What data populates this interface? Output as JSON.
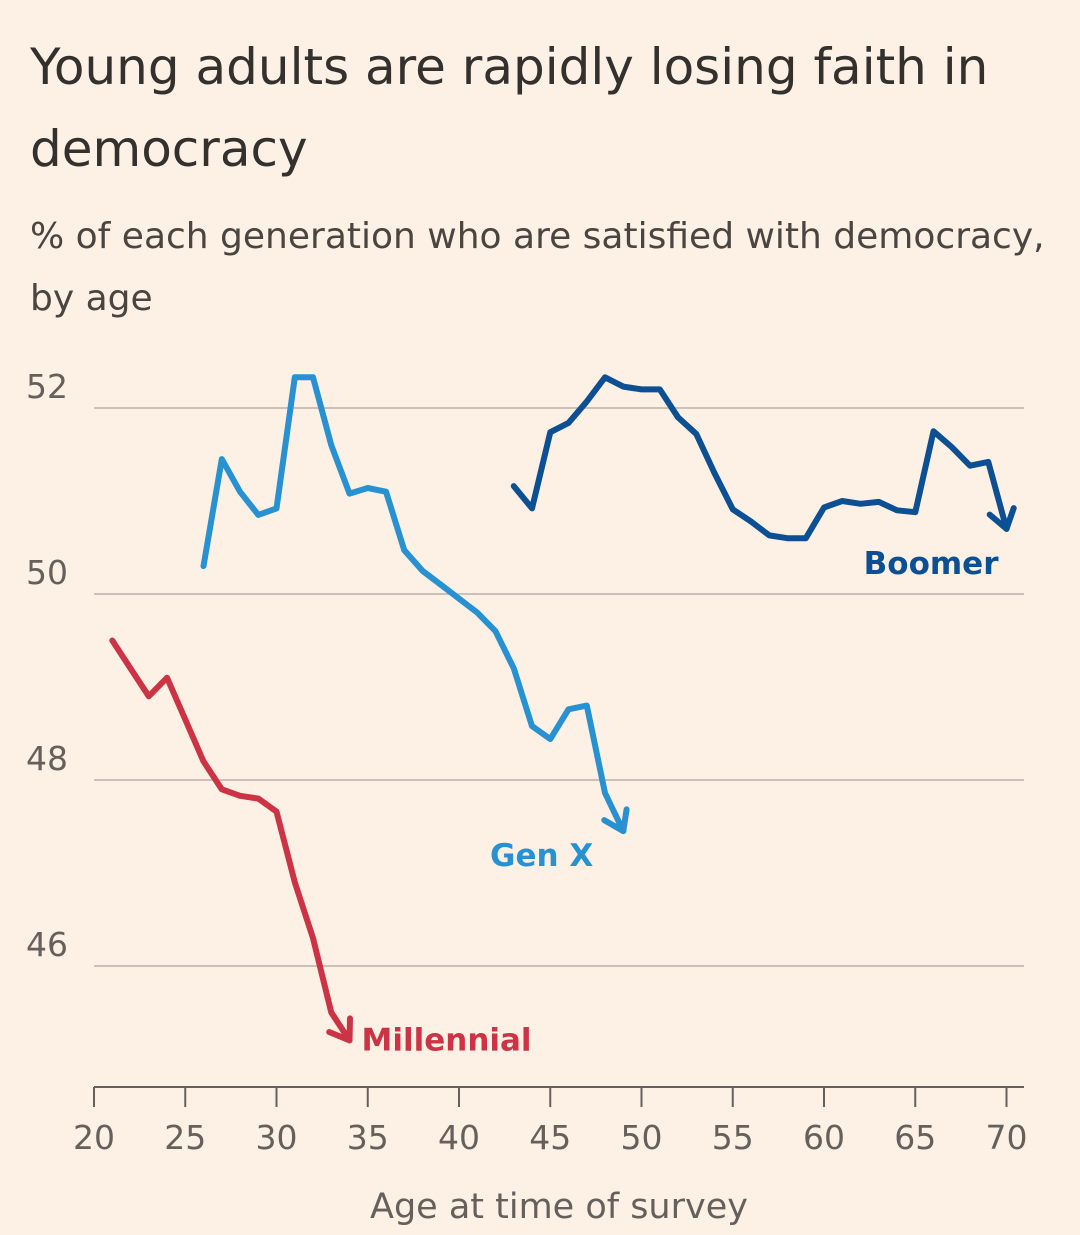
{
  "chart_data": {
    "type": "line",
    "title": "Young adults are rapidly losing faith in democracy",
    "subtitle": "% of each generation who are satisfied with democracy, by age",
    "xlabel": "Age at time of survey",
    "ylabel": "",
    "xlim": [
      20,
      71
    ],
    "ylim": [
      44.8,
      53.2
    ],
    "x_ticks": [
      20,
      25,
      30,
      35,
      40,
      45,
      50,
      55,
      60,
      65,
      70
    ],
    "y_ticks": [
      46,
      48,
      50,
      52
    ],
    "grid": "horizontal",
    "legend": "direct labels at line ends",
    "series": [
      {
        "name": "Millennial",
        "color": "#cc3344",
        "x": [
          21,
          22,
          23,
          24,
          25,
          26,
          27,
          28,
          29,
          30,
          31,
          32,
          33,
          34
        ],
        "y": [
          49.5,
          49.2,
          48.9,
          49.1,
          48.65,
          48.2,
          47.9,
          47.83,
          47.8,
          47.66,
          46.9,
          46.3,
          45.5,
          45.2
        ]
      },
      {
        "name": "Gen X",
        "color": "#2891d1",
        "x": [
          26,
          27,
          28,
          29,
          30,
          31,
          32,
          33,
          34,
          35,
          36,
          37,
          38,
          39,
          40,
          41,
          42,
          43,
          44,
          45,
          46,
          47,
          48,
          49
        ],
        "y": [
          50.3,
          51.45,
          51.1,
          50.85,
          50.92,
          52.33,
          52.33,
          51.6,
          51.08,
          51.14,
          51.1,
          50.47,
          50.25,
          50.1,
          49.95,
          49.8,
          49.6,
          49.2,
          48.58,
          48.44,
          48.76,
          48.8,
          47.86,
          47.45
        ]
      },
      {
        "name": "Boomer",
        "color": "#0d4f93",
        "x": [
          43,
          44,
          45,
          46,
          47,
          48,
          49,
          50,
          51,
          52,
          53,
          54,
          55,
          56,
          57,
          58,
          59,
          60,
          61,
          62,
          63,
          64,
          65,
          66,
          67,
          68,
          69,
          70
        ],
        "y": [
          51.16,
          50.92,
          51.74,
          51.84,
          52.07,
          52.33,
          52.23,
          52.2,
          52.2,
          51.9,
          51.72,
          51.3,
          50.91,
          50.78,
          50.63,
          50.6,
          50.6,
          50.93,
          51.0,
          50.97,
          50.99,
          50.9,
          50.88,
          51.75,
          51.58,
          51.38,
          51.42,
          50.7
        ]
      }
    ]
  }
}
